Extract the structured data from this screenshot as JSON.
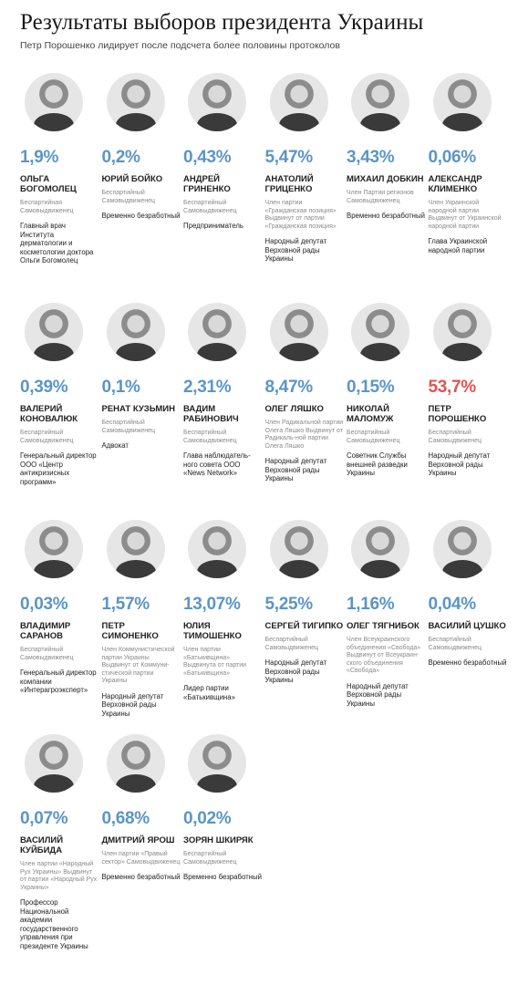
{
  "header": {
    "title": "Результаты выборов президента Украины",
    "subtitle": "Петр Порошенко лидирует после подсчета более половины протоколов"
  },
  "candidates": [
    {
      "pct": "1,9%",
      "name": "Ольга Богомолец",
      "party": "Беспартийная Самовыдвиженец",
      "job": "Главный врач Института дерматологии и косметологии доктора Ольги Богомолец",
      "leader": false
    },
    {
      "pct": "0,2%",
      "name": "Юрий Бойко",
      "party": "Беспартийный Самовыдвиженец",
      "job": "Временно безработный",
      "leader": false
    },
    {
      "pct": "0,43%",
      "name": "Андрей Гриненко",
      "party": "Беспартийный Самовыдвиженец",
      "job": "Предприниматель",
      "leader": false
    },
    {
      "pct": "5,47%",
      "name": "Анатолий Гриценко",
      "party": "Член партии «Гражданская позиция» Выдвинут от партии «Гражданская позиция»",
      "job": "Народный депутат Верховной рады Украины",
      "leader": false
    },
    {
      "pct": "3,43%",
      "name": "Михаил Добкин",
      "party": "Член Партии регионов Самовыдвиженец",
      "job": "Временно безработный",
      "leader": false
    },
    {
      "pct": "0,06%",
      "name": "Александр Клименко",
      "party": "Член Украинской народной партии Выдвинут от Украинской народной партии",
      "job": "Глава Украинской народной партии",
      "leader": false
    },
    {
      "pct": "0,39%",
      "name": "Валерий Коновалюк",
      "party": "Беспартийный Самовыдвиженец",
      "job": "Генеральный директор ООО «Центр антикризисных программ»",
      "leader": false
    },
    {
      "pct": "0,1%",
      "name": "Ренат Кузьмин",
      "party": "Беспартийный Самовыдвиженец",
      "job": "Адвокат",
      "leader": false
    },
    {
      "pct": "2,31%",
      "name": "Вадим Рабинович",
      "party": "Беспартийный Самовыдвиженец",
      "job": "Глава наблюдатель-ного совета ООО «News Network»",
      "leader": false
    },
    {
      "pct": "8,47%",
      "name": "Олег Ляшко",
      "party": "Член Радикальной партии Олега Ляшко Выдвинут от Радикаль-ной партии Олега Ляшко",
      "job": "Народный депутат Верховной рады Украины",
      "leader": false
    },
    {
      "pct": "0,15%",
      "name": "Николай Маломуж",
      "party": "Беспартийный Самовыдвиженец",
      "job": "Советник Службы внешней разведки Украины",
      "leader": false
    },
    {
      "pct": "53,7%",
      "name": "Петр Порошенко",
      "party": "Беспартийный Самовыдвиженец",
      "job": "Народный депутат Верховной рады Украины",
      "leader": true
    },
    {
      "pct": "0,03%",
      "name": "Владимир Саранов",
      "party": "Беспартийный Самовыдвиженец",
      "job": "Генеральный директор компании «Интерагроэксперт»",
      "leader": false
    },
    {
      "pct": "1,57%",
      "name": "Петр Симоненко",
      "party": "Член Коммунистической партии Украины Выдвинут от Коммуни-стической партии Украины",
      "job": "Народный депутат Верховной рады Украины",
      "leader": false
    },
    {
      "pct": "13,07%",
      "name": "Юлия Тимошенко",
      "party": "Член партии «Батькивщина» Выдвинута от партии «Батькивщина»",
      "job": "Лидер партии «Батькивщина»",
      "leader": false
    },
    {
      "pct": "5,25%",
      "name": "Сергей Тигипко",
      "party": "Беспартийный Самовыдвиженец",
      "job": "Народный депутат Верховной рады Украины",
      "leader": false
    },
    {
      "pct": "1,16%",
      "name": "Олег Тягнибок",
      "party": "Член Всеукраинского объединения «Свобода» Выдвинут от Всеукраин-ского объединения «Свобода»",
      "job": "Народный депутат Верховной рады Украины",
      "leader": false
    },
    {
      "pct": "0,04%",
      "name": "Василий Цушко",
      "party": "Беспартийный Самовыдвиженец",
      "job": "Временно безработный",
      "leader": false
    },
    {
      "pct": "0,07%",
      "name": "Василий Куйбида",
      "party": "Член партии «Народный Рух Украины» Выдвинут от партии «Народный Рух Украины»",
      "job": "Профессор Национальной академии государственного управления при президенте Украины",
      "leader": false
    },
    {
      "pct": "0,68%",
      "name": "Дмитрий Ярош",
      "party": "Член партии «Правый сектор» Самовыдвиженец",
      "job": "Временно безработный",
      "leader": false
    },
    {
      "pct": "0,02%",
      "name": "Зорян Шкиряк",
      "party": "Беспартийный Самовыдвиженец",
      "job": "Временно безработный",
      "leader": false
    }
  ]
}
